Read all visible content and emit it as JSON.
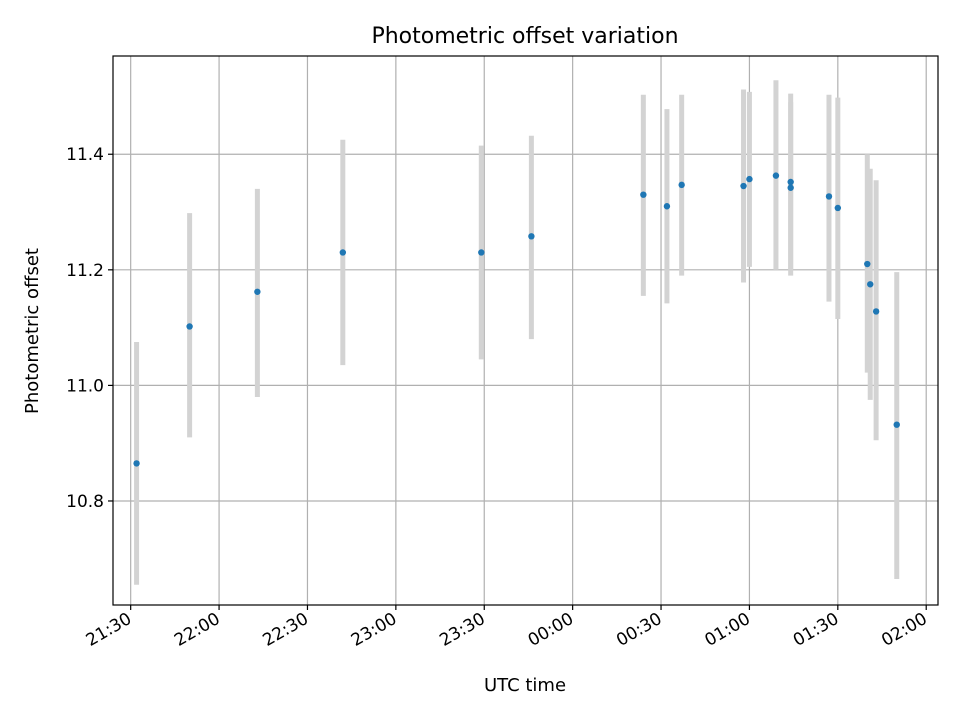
{
  "chart_data": {
    "type": "scatter",
    "title": "Photometric offset variation",
    "xlabel": "UTC time",
    "ylabel": "Photometric offset",
    "grid": true,
    "x_range": [
      "21:24",
      "02:04"
    ],
    "ylim": [
      10.62,
      11.57
    ],
    "x_ticks": [
      "21:30",
      "22:00",
      "22:30",
      "23:00",
      "23:30",
      "00:00",
      "00:30",
      "01:00",
      "01:30",
      "02:00"
    ],
    "y_ticks": [
      10.8,
      11.0,
      11.2,
      11.4
    ],
    "y_tick_labels": [
      "10.8",
      "11.0",
      "11.2",
      "11.4"
    ],
    "marker_color": "#1f77b4",
    "errorbar_color": "#d3d3d3",
    "points": [
      {
        "time": "21:32",
        "y": 10.865,
        "ylo": 10.655,
        "yhi": 11.075
      },
      {
        "time": "21:50",
        "y": 11.102,
        "ylo": 10.91,
        "yhi": 11.298
      },
      {
        "time": "22:13",
        "y": 11.162,
        "ylo": 10.98,
        "yhi": 11.34
      },
      {
        "time": "22:42",
        "y": 11.23,
        "ylo": 11.035,
        "yhi": 11.425
      },
      {
        "time": "23:29",
        "y": 11.23,
        "ylo": 11.045,
        "yhi": 11.415
      },
      {
        "time": "23:46",
        "y": 11.258,
        "ylo": 11.08,
        "yhi": 11.432
      },
      {
        "time": "00:24",
        "y": 11.33,
        "ylo": 11.155,
        "yhi": 11.503
      },
      {
        "time": "00:32",
        "y": 11.31,
        "ylo": 11.142,
        "yhi": 11.478
      },
      {
        "time": "00:37",
        "y": 11.347,
        "ylo": 11.19,
        "yhi": 11.503
      },
      {
        "time": "00:58",
        "y": 11.345,
        "ylo": 11.178,
        "yhi": 11.512
      },
      {
        "time": "01:00",
        "y": 11.357,
        "ylo": 11.205,
        "yhi": 11.508
      },
      {
        "time": "01:09",
        "y": 11.363,
        "ylo": 11.2,
        "yhi": 11.528
      },
      {
        "time": "01:14",
        "y": 11.342,
        "ylo": 11.19,
        "yhi": 11.49
      },
      {
        "time": "01:14",
        "y": 11.352,
        "ylo": 11.2,
        "yhi": 11.505
      },
      {
        "time": "01:27",
        "y": 11.327,
        "ylo": 11.145,
        "yhi": 11.503
      },
      {
        "time": "01:30",
        "y": 11.307,
        "ylo": 11.115,
        "yhi": 11.498
      },
      {
        "time": "01:40",
        "y": 11.21,
        "ylo": 11.022,
        "yhi": 11.4
      },
      {
        "time": "01:41",
        "y": 11.175,
        "ylo": 10.975,
        "yhi": 11.375
      },
      {
        "time": "01:43",
        "y": 11.128,
        "ylo": 10.905,
        "yhi": 11.355
      },
      {
        "time": "01:50",
        "y": 10.932,
        "ylo": 10.665,
        "yhi": 11.196
      }
    ]
  }
}
